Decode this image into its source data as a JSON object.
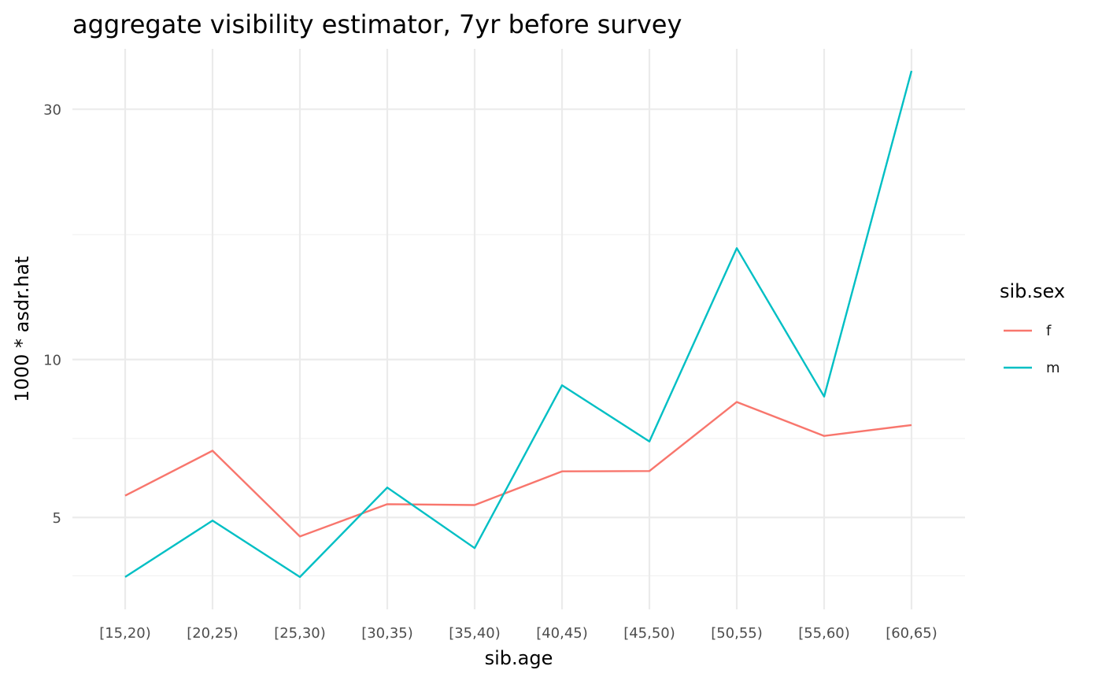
{
  "chart_data": {
    "type": "line",
    "title": "aggregate visibility estimator, 7yr before survey",
    "xlabel": "sib.age",
    "ylabel": "1000 * asdr.hat",
    "y_scale": "log10",
    "ylim": [
      3.34,
      39.1
    ],
    "y_ticks": [
      5,
      10,
      30
    ],
    "y_tick_labels": [
      "5",
      "10",
      "30"
    ],
    "y_minor_ticks": [
      3.87,
      7.07,
      17.3
    ],
    "categories": [
      "[15,20)",
      "[20,25)",
      "[25,30)",
      "[30,35)",
      "[35,40)",
      "[40,45)",
      "[45,50)",
      "[50,55)",
      "[55,60)",
      "[60,65)"
    ],
    "legend_title": "sib.sex",
    "series": [
      {
        "name": "f",
        "color": "#F8766D",
        "values": [
          5.5,
          6.7,
          4.6,
          5.3,
          5.28,
          6.12,
          6.13,
          8.3,
          7.15,
          7.5
        ]
      },
      {
        "name": "m",
        "color": "#00BFC4",
        "values": [
          3.85,
          4.93,
          3.85,
          5.7,
          4.37,
          8.93,
          6.98,
          16.3,
          8.5,
          35.5
        ]
      }
    ]
  }
}
